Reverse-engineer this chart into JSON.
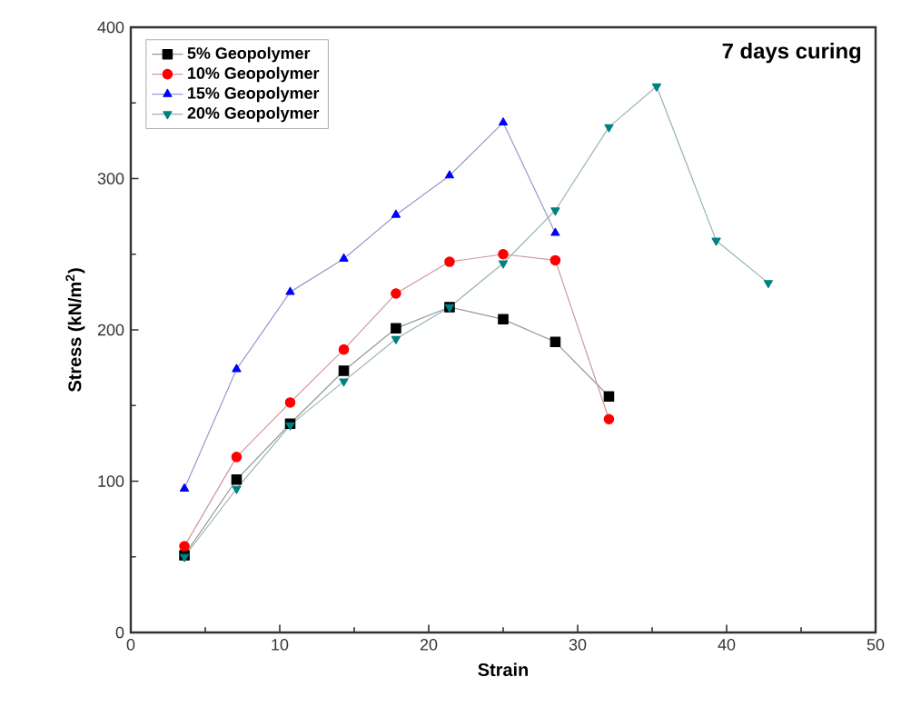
{
  "chart_data": {
    "type": "line",
    "xlabel": "Strain",
    "ylabel": "Stress (kN/m$^{2}$)",
    "annotations": [
      "7 days curing"
    ],
    "xlim": [
      0,
      50
    ],
    "xticks": [
      0,
      10,
      20,
      30,
      40,
      50
    ],
    "ylim": [
      0,
      400
    ],
    "yticks": [
      0,
      100,
      200,
      300,
      400
    ],
    "legend": "top left",
    "grid": false,
    "series": [
      {
        "name": "5% Geopolymer",
        "color": "#000000",
        "marker": "square",
        "x": [
          3.6,
          7.1,
          10.7,
          14.3,
          17.8,
          21.4,
          25.0,
          28.5,
          32.1
        ],
        "values": [
          51,
          101,
          138,
          173,
          201,
          215,
          207,
          192,
          156
        ]
      },
      {
        "name": "10% Geopolymer",
        "color": "#ff0000",
        "marker": "circle",
        "x": [
          3.6,
          7.1,
          10.7,
          14.3,
          17.8,
          21.4,
          25.0,
          28.5,
          32.1
        ],
        "values": [
          57,
          116,
          152,
          187,
          224,
          245,
          250,
          246,
          141
        ]
      },
      {
        "name": "15% Geopolymer",
        "color": "#0000ff",
        "marker": "triangle",
        "x": [
          3.6,
          7.1,
          10.7,
          14.3,
          17.8,
          21.4,
          25.0,
          28.5
        ],
        "values": [
          95,
          174,
          225,
          247,
          276,
          302,
          337,
          264
        ]
      },
      {
        "name": "20% Geopolymer",
        "color": "#008080",
        "marker": "triangle down",
        "x": [
          3.6,
          7.1,
          10.7,
          14.3,
          17.8,
          21.4,
          25.0,
          28.5,
          32.1,
          35.3,
          39.3,
          42.8
        ],
        "values": [
          50,
          95,
          137,
          166,
          194,
          215,
          244,
          279,
          334,
          361,
          259,
          231
        ]
      }
    ]
  }
}
